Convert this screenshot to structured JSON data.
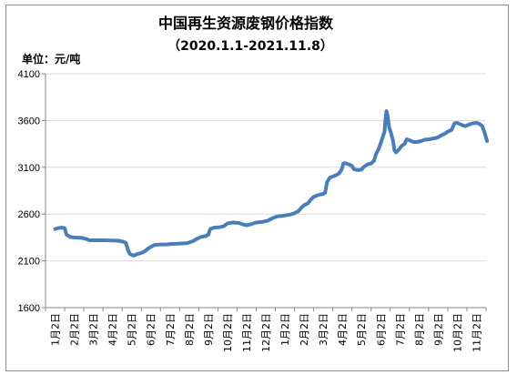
{
  "chart_data": {
    "type": "line",
    "title": "中国再生资源废钢价格指数",
    "subtitle": "（2020.1.1-2021.11.8）",
    "ylabel": "单位：元/吨",
    "xlabel": "",
    "ylim": [
      1600,
      4100
    ],
    "yticks": [
      1600,
      2100,
      2600,
      3100,
      3600,
      4100
    ],
    "ytick_labels": [
      "1600",
      "2100",
      "2600",
      "3100",
      "3600",
      "4100"
    ],
    "grid": true,
    "legend": "none",
    "categories": [
      "1月2日",
      "2月2日",
      "3月2日",
      "4月2日",
      "5月2日",
      "6月2日",
      "7月2日",
      "8月2日",
      "9月2日",
      "10月2日",
      "11月2日",
      "12月2日",
      "1月2日",
      "2月2日",
      "3月2日",
      "4月2日",
      "5月2日",
      "6月2日",
      "7月2日",
      "8月2日",
      "9月2日",
      "10月2日",
      "11月2日"
    ],
    "series": [
      {
        "color": "#4a7ebb",
        "points": [
          [
            0.0,
            2440
          ],
          [
            0.15,
            2450
          ],
          [
            0.35,
            2455
          ],
          [
            0.5,
            2450
          ],
          [
            0.6,
            2380
          ],
          [
            0.8,
            2355
          ],
          [
            1.0,
            2350
          ],
          [
            1.4,
            2345
          ],
          [
            1.6,
            2335
          ],
          [
            1.8,
            2320
          ],
          [
            2.2,
            2320
          ],
          [
            2.6,
            2320
          ],
          [
            3.0,
            2318
          ],
          [
            3.3,
            2315
          ],
          [
            3.55,
            2305
          ],
          [
            3.7,
            2290
          ],
          [
            3.8,
            2220
          ],
          [
            3.9,
            2175
          ],
          [
            4.0,
            2165
          ],
          [
            4.1,
            2155
          ],
          [
            4.25,
            2170
          ],
          [
            4.5,
            2185
          ],
          [
            4.7,
            2205
          ],
          [
            4.85,
            2230
          ],
          [
            5.0,
            2250
          ],
          [
            5.2,
            2270
          ],
          [
            5.5,
            2275
          ],
          [
            5.8,
            2275
          ],
          [
            6.0,
            2280
          ],
          [
            6.5,
            2285
          ],
          [
            6.9,
            2290
          ],
          [
            7.2,
            2310
          ],
          [
            7.4,
            2335
          ],
          [
            7.6,
            2355
          ],
          [
            7.85,
            2365
          ],
          [
            8.0,
            2380
          ],
          [
            8.1,
            2440
          ],
          [
            8.3,
            2455
          ],
          [
            8.6,
            2460
          ],
          [
            8.8,
            2470
          ],
          [
            9.0,
            2500
          ],
          [
            9.3,
            2510
          ],
          [
            9.6,
            2505
          ],
          [
            9.8,
            2490
          ],
          [
            10.0,
            2480
          ],
          [
            10.2,
            2490
          ],
          [
            10.5,
            2510
          ],
          [
            10.8,
            2515
          ],
          [
            11.1,
            2530
          ],
          [
            11.4,
            2560
          ],
          [
            11.6,
            2575
          ],
          [
            11.8,
            2580
          ],
          [
            12.0,
            2585
          ],
          [
            12.3,
            2595
          ],
          [
            12.5,
            2610
          ],
          [
            12.7,
            2630
          ],
          [
            12.85,
            2665
          ],
          [
            13.0,
            2695
          ],
          [
            13.2,
            2715
          ],
          [
            13.35,
            2755
          ],
          [
            13.5,
            2785
          ],
          [
            13.7,
            2800
          ],
          [
            13.85,
            2810
          ],
          [
            14.0,
            2815
          ],
          [
            14.1,
            2830
          ],
          [
            14.2,
            2940
          ],
          [
            14.35,
            2990
          ],
          [
            14.6,
            3010
          ],
          [
            14.8,
            3030
          ],
          [
            14.95,
            3070
          ],
          [
            15.05,
            3140
          ],
          [
            15.15,
            3145
          ],
          [
            15.35,
            3130
          ],
          [
            15.5,
            3115
          ],
          [
            15.6,
            3080
          ],
          [
            15.8,
            3070
          ],
          [
            16.0,
            3075
          ],
          [
            16.1,
            3100
          ],
          [
            16.3,
            3130
          ],
          [
            16.5,
            3140
          ],
          [
            16.65,
            3170
          ],
          [
            16.75,
            3240
          ],
          [
            16.9,
            3300
          ],
          [
            17.0,
            3360
          ],
          [
            17.1,
            3420
          ],
          [
            17.2,
            3480
          ],
          [
            17.25,
            3620
          ],
          [
            17.3,
            3700
          ],
          [
            17.37,
            3640
          ],
          [
            17.45,
            3520
          ],
          [
            17.55,
            3460
          ],
          [
            17.65,
            3380
          ],
          [
            17.72,
            3280
          ],
          [
            17.8,
            3260
          ],
          [
            17.95,
            3290
          ],
          [
            18.1,
            3330
          ],
          [
            18.25,
            3350
          ],
          [
            18.35,
            3400
          ],
          [
            18.5,
            3390
          ],
          [
            18.7,
            3370
          ],
          [
            18.9,
            3370
          ],
          [
            19.1,
            3380
          ],
          [
            19.3,
            3395
          ],
          [
            19.55,
            3400
          ],
          [
            19.8,
            3410
          ],
          [
            20.0,
            3420
          ],
          [
            20.15,
            3440
          ],
          [
            20.35,
            3460
          ],
          [
            20.5,
            3480
          ],
          [
            20.7,
            3500
          ],
          [
            20.85,
            3570
          ],
          [
            21.0,
            3575
          ],
          [
            21.2,
            3555
          ],
          [
            21.4,
            3540
          ],
          [
            21.6,
            3555
          ],
          [
            21.8,
            3570
          ],
          [
            22.0,
            3575
          ],
          [
            22.15,
            3565
          ],
          [
            22.3,
            3540
          ],
          [
            22.45,
            3455
          ],
          [
            22.55,
            3380
          ]
        ]
      }
    ]
  }
}
